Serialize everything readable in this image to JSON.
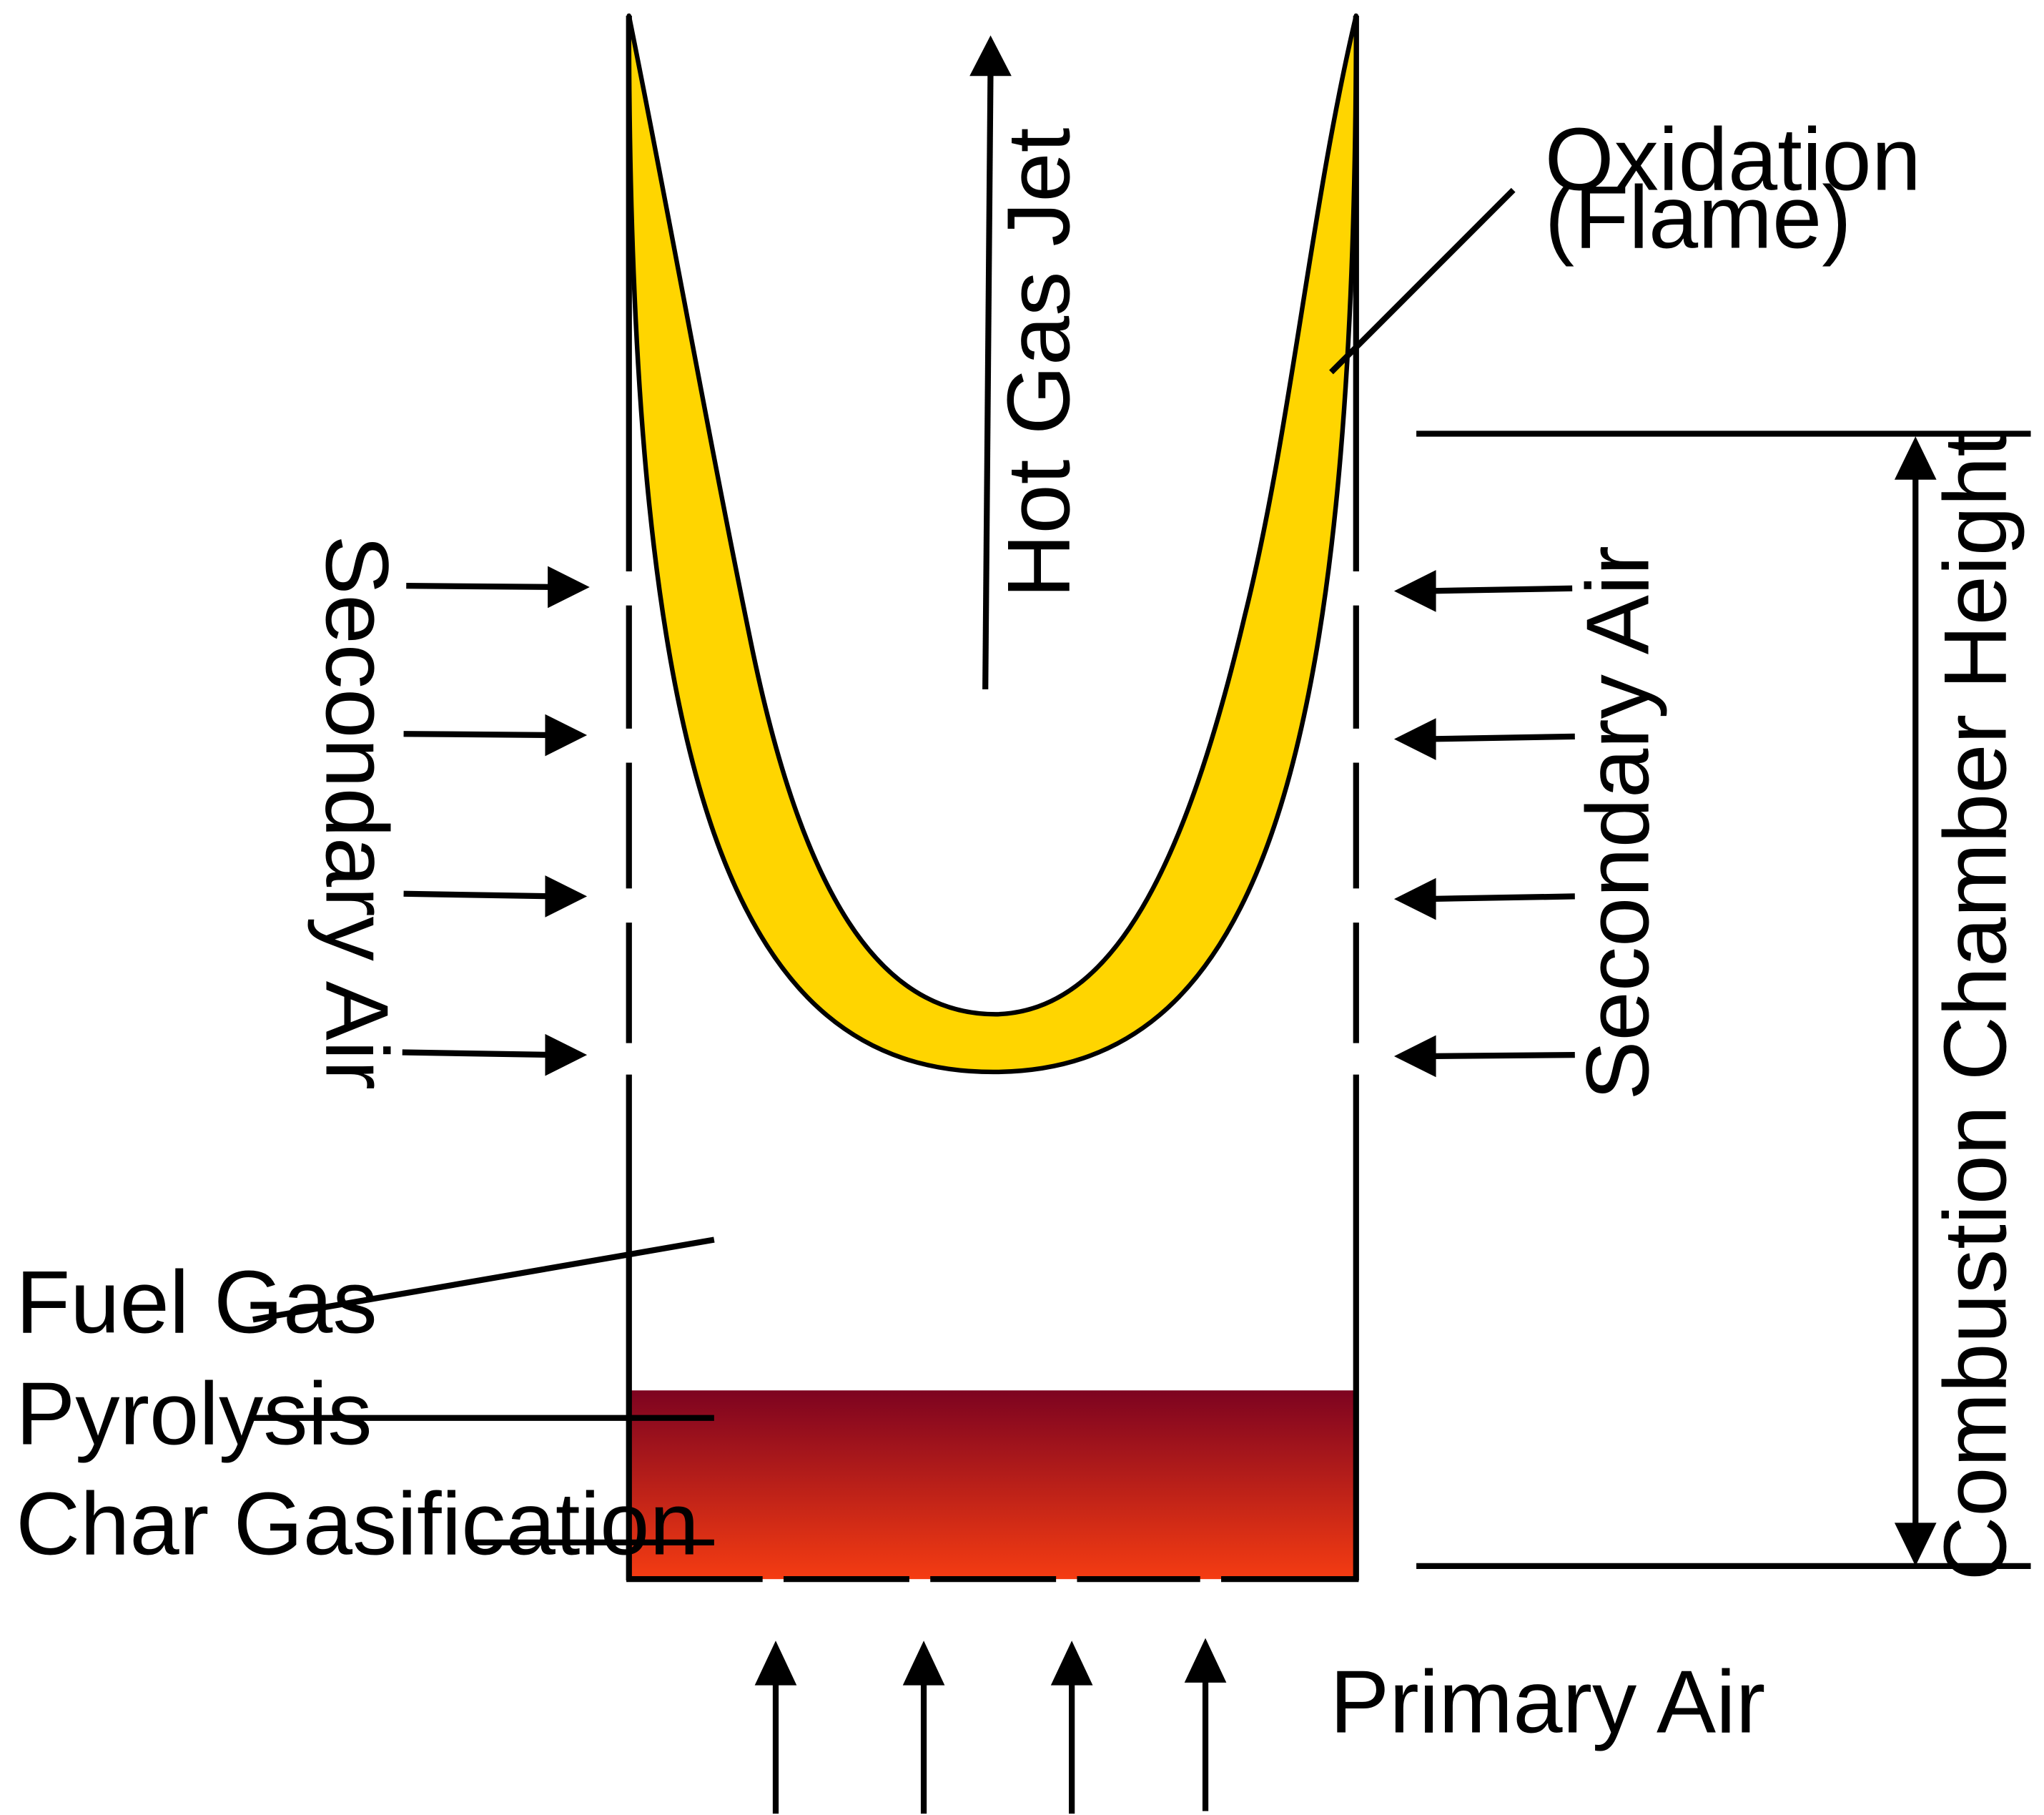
{
  "labels": {
    "hot_gas_jet": "Hot Gas Jet",
    "oxidation_line1": "Oxidation",
    "oxidation_line2": "(Flame)",
    "secondary_air_left": "Secondary Air",
    "secondary_air_right": "Secondary Air",
    "combustion_chamber_height": "Combustion Chamber Height",
    "fuel_gas": "Fuel Gas",
    "pyrolysis": "Pyrolysis",
    "char_gasification": "Char Gasification",
    "primary_air": "Primary Air"
  },
  "colors": {
    "flame_fill": "#FFD500",
    "fuel_bed_top": "#7D0320",
    "fuel_bed_bottom": "#F53C12",
    "stroke": "#000000"
  }
}
